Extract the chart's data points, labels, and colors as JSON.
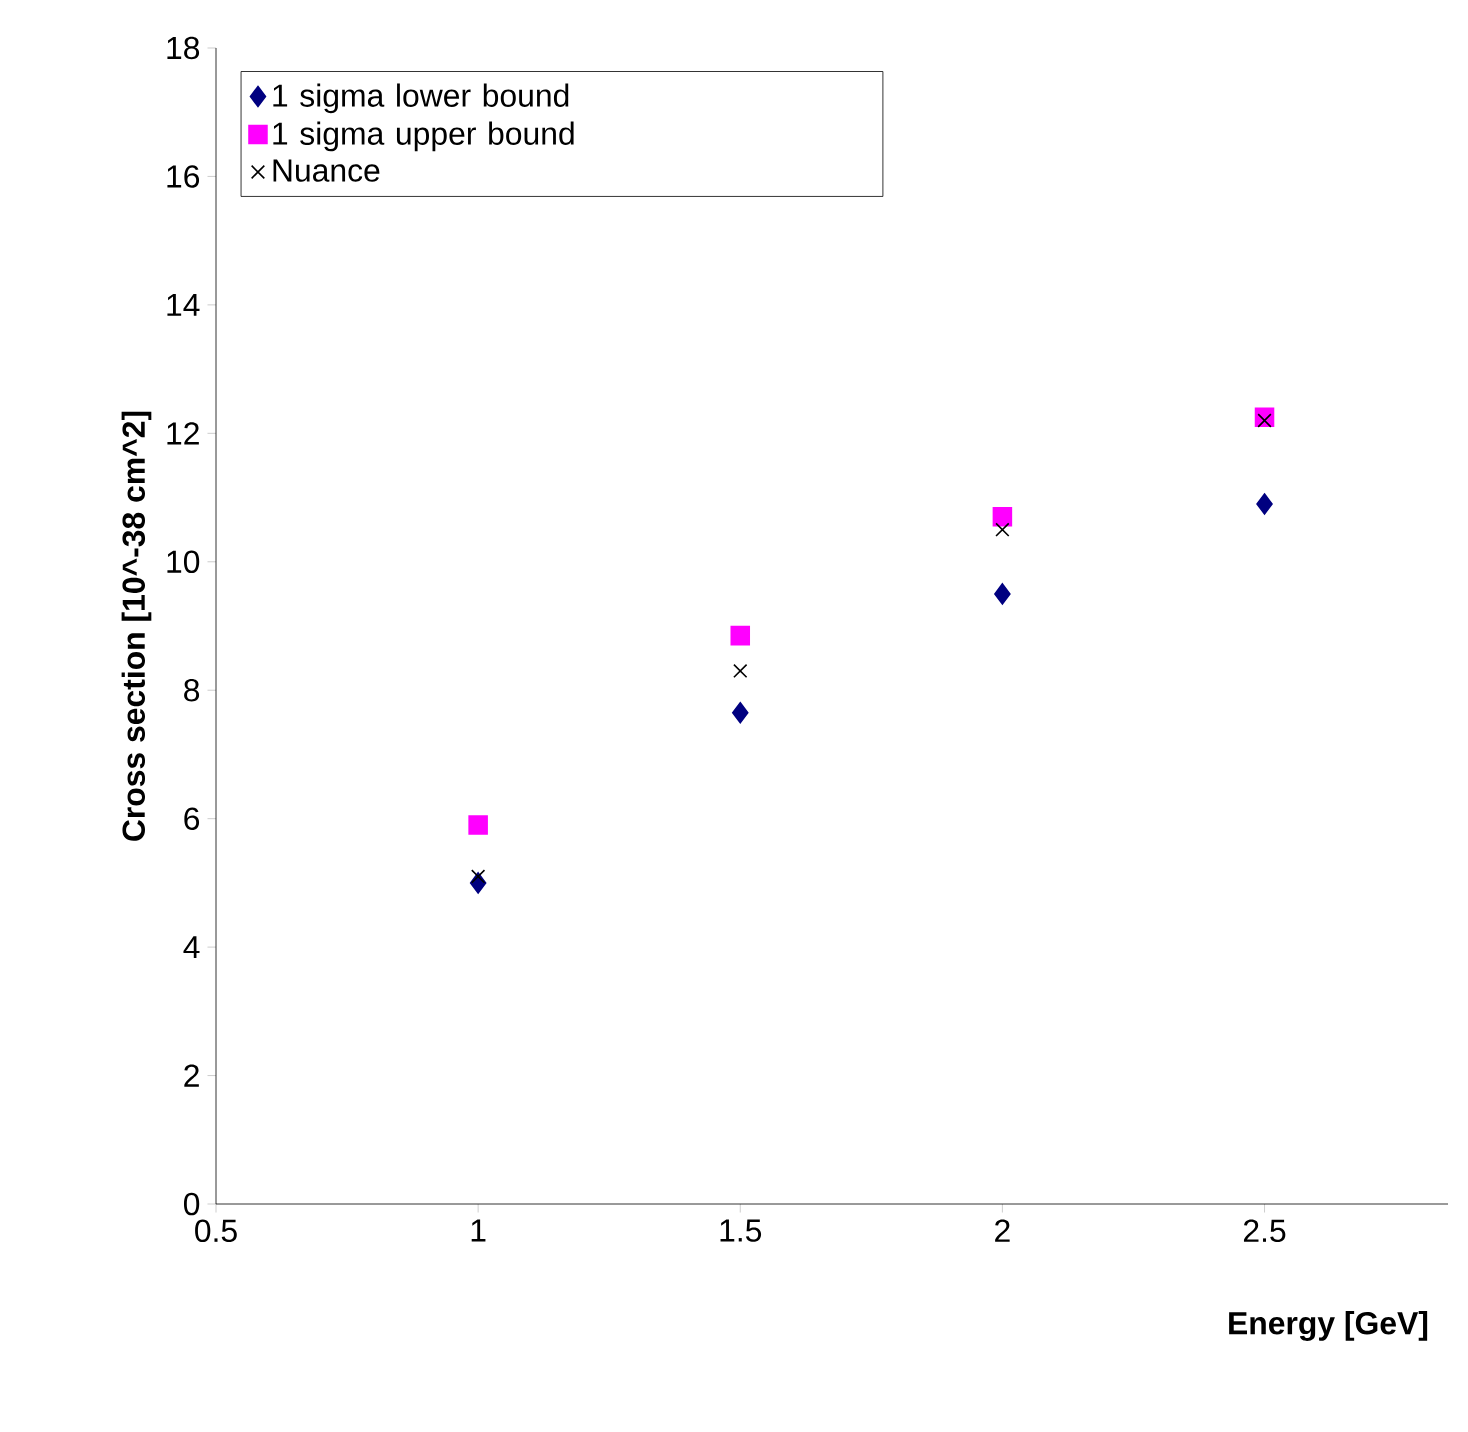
{
  "chart_data": {
    "type": "scatter",
    "xlabel": "Energy [GeV]",
    "ylabel": "Cross section [10^-38 cm^2]",
    "xlim": [
      0.5,
      2.85
    ],
    "xticks": [
      0.5,
      1,
      1.5,
      2,
      2.5
    ],
    "ylim": [
      0,
      18
    ],
    "yticks": [
      0,
      2,
      4,
      6,
      8,
      10,
      12,
      14,
      16,
      18
    ],
    "legend": "top left",
    "grid": false,
    "series": [
      {
        "name": "1 sigma lower bound",
        "color": "#000080",
        "marker": "diamond",
        "x": [
          1,
          1.5,
          2,
          2.5
        ],
        "values": [
          5.0,
          7.65,
          9.5,
          10.9
        ]
      },
      {
        "name": "1 sigma upper bound",
        "color": "#ff00ff",
        "marker": "square",
        "x": [
          1,
          1.5,
          2,
          2.5
        ],
        "values": [
          5.9,
          8.85,
          10.7,
          12.25
        ]
      },
      {
        "name": "Nuance",
        "color": "#000000",
        "marker": "cross",
        "x": [
          1,
          1.5,
          2,
          2.5
        ],
        "values": [
          5.1,
          8.3,
          10.5,
          12.2
        ]
      }
    ]
  }
}
